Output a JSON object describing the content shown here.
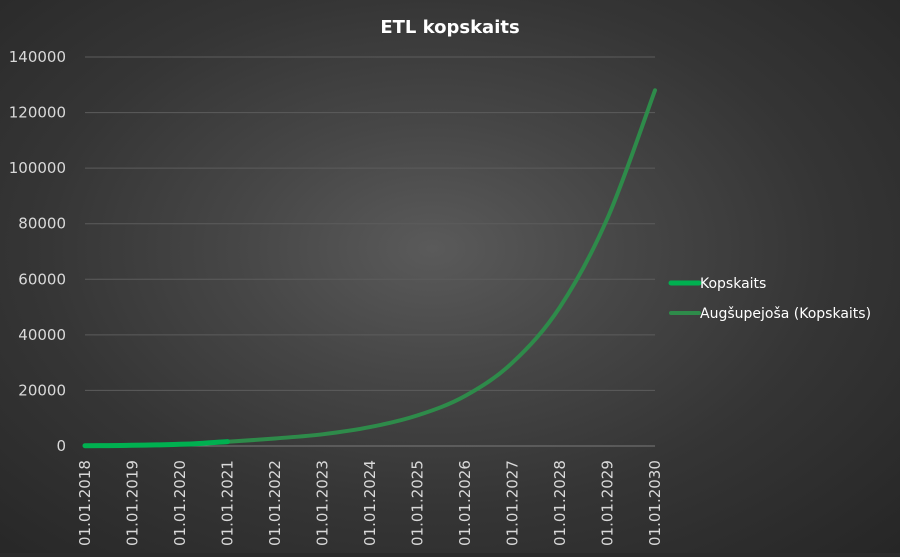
{
  "chart_data": {
    "type": "line",
    "title": "ETL kopskaits",
    "xlabel": "",
    "ylabel": "",
    "ylim": [
      0,
      140000
    ],
    "yticks": [
      "0",
      "20000",
      "40000",
      "60000",
      "80000",
      "100000",
      "120000",
      "140000"
    ],
    "xticks": [
      "01.01.2018",
      "01.01.2019",
      "01.01.2020",
      "01.01.2021",
      "01.01.2022",
      "01.01.2023",
      "01.01.2024",
      "01.01.2025",
      "01.01.2026",
      "01.01.2027",
      "01.01.2028",
      "01.01.2029",
      "01.01.2030"
    ],
    "grid": true,
    "legend_position": "right",
    "series": [
      {
        "name": "Kopskaits",
        "color": "#00b050",
        "x": [
          "01.01.2018",
          "01.07.2018",
          "01.01.2019",
          "01.07.2019",
          "01.01.2020",
          "01.07.2020",
          "01.01.2021"
        ],
        "y": [
          100,
          150,
          250,
          400,
          600,
          1000,
          1600
        ]
      },
      {
        "name": "Augšupejoša (Kopskaits)",
        "color": "#2e8b4a",
        "x": [
          "01.01.2021",
          "01.01.2022",
          "01.01.2023",
          "01.01.2024",
          "01.01.2025",
          "01.01.2026",
          "01.01.2027",
          "01.01.2028",
          "01.01.2029",
          "01.01.2030"
        ],
        "y": [
          1500,
          2700,
          4200,
          6800,
          11000,
          18000,
          30000,
          50000,
          82000,
          128000
        ]
      }
    ]
  }
}
